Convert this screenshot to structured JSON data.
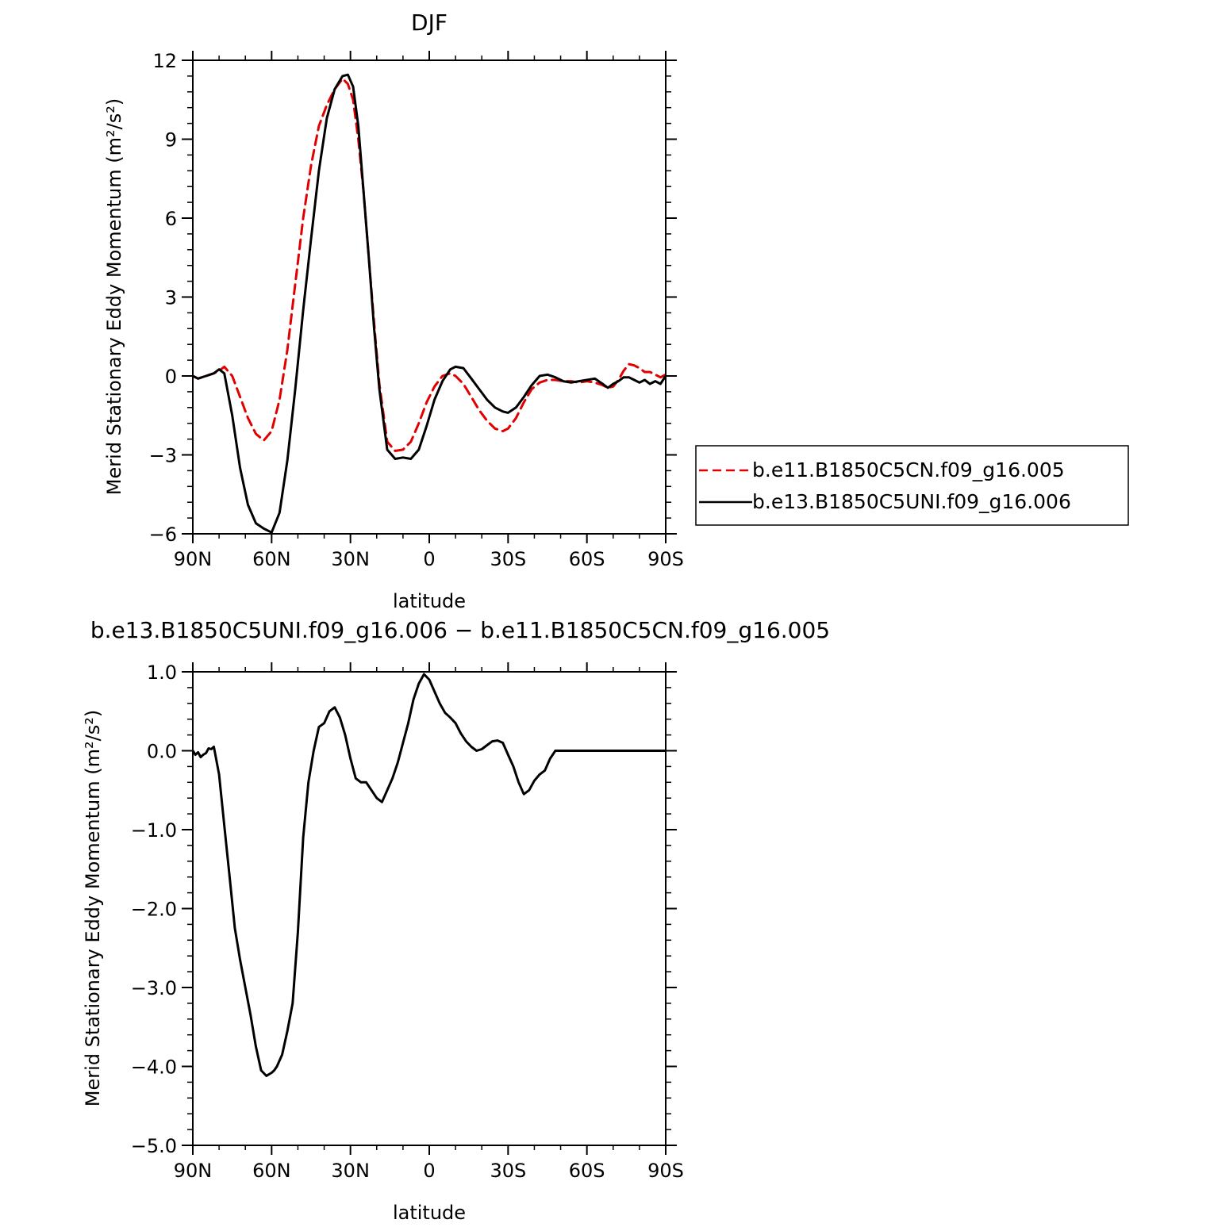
{
  "chart_data": [
    {
      "type": "line",
      "title": "DJF",
      "xlabel": "latitude",
      "ylabel": "Merid Stationary Eddy Momentum (m²/s²)",
      "xlim": [
        90,
        -90
      ],
      "ylim": [
        -6,
        12
      ],
      "xticks": [
        90,
        60,
        30,
        0,
        -30,
        -60,
        -90
      ],
      "xtick_labels": [
        "90N",
        "60N",
        "30N",
        "0",
        "30S",
        "60S",
        "90S"
      ],
      "yticks": [
        -6,
        -3,
        0,
        3,
        6,
        9,
        12
      ],
      "ytick_labels": [
        "−6",
        "−3",
        "0",
        "3",
        "6",
        "9",
        "12"
      ],
      "legend_position": "right",
      "series": [
        {
          "name": "b.e11.B1850C5CN.f09_g16.005",
          "color": "#e00000",
          "style": "dashed",
          "x": [
            90,
            88,
            85,
            82,
            80,
            78,
            75,
            72,
            69,
            66,
            63,
            60,
            57,
            54,
            51,
            48,
            45,
            42,
            39,
            36,
            33,
            31,
            29,
            27,
            25,
            23,
            21,
            19,
            16,
            13,
            10,
            7,
            4,
            1,
            -2,
            -5,
            -8,
            -10,
            -13,
            -16,
            -19,
            -22,
            -25,
            -28,
            -30,
            -33,
            -36,
            -39,
            -42,
            -45,
            -48,
            -51,
            -54,
            -57,
            -60,
            -63,
            -66,
            -68,
            -70,
            -72,
            -74,
            -76,
            -78,
            -80,
            -82,
            -84,
            -86,
            -88,
            -90
          ],
          "y": [
            0.0,
            -0.1,
            0.0,
            0.1,
            0.2,
            0.35,
            0.0,
            -0.8,
            -1.6,
            -2.2,
            -2.45,
            -2.1,
            -0.9,
            1.0,
            3.5,
            6.0,
            8.0,
            9.5,
            10.3,
            10.9,
            11.3,
            11.1,
            10.5,
            9.0,
            7.0,
            4.5,
            2.0,
            -0.3,
            -2.5,
            -2.85,
            -2.8,
            -2.5,
            -1.8,
            -1.0,
            -0.4,
            0.0,
            0.1,
            0.0,
            -0.3,
            -0.8,
            -1.3,
            -1.7,
            -2.0,
            -2.1,
            -2.0,
            -1.6,
            -1.0,
            -0.5,
            -0.25,
            -0.15,
            -0.15,
            -0.2,
            -0.2,
            -0.25,
            -0.2,
            -0.25,
            -0.35,
            -0.45,
            -0.4,
            -0.15,
            0.2,
            0.45,
            0.4,
            0.3,
            0.15,
            0.15,
            0.05,
            -0.05,
            0.05
          ]
        },
        {
          "name": "b.e13.B1850C5UNI.f09_g16.006",
          "color": "#000000",
          "style": "solid",
          "x": [
            90,
            88,
            85,
            82,
            80,
            78,
            75,
            72,
            69,
            66,
            63,
            60,
            57,
            54,
            51,
            48,
            45,
            42,
            39,
            36,
            33,
            31,
            29,
            27,
            25,
            23,
            21,
            19,
            16,
            13,
            10,
            7,
            4,
            1,
            -2,
            -5,
            -8,
            -10,
            -13,
            -16,
            -19,
            -22,
            -25,
            -28,
            -30,
            -33,
            -36,
            -39,
            -42,
            -45,
            -48,
            -51,
            -54,
            -57,
            -60,
            -63,
            -66,
            -68,
            -70,
            -72,
            -74,
            -76,
            -78,
            -80,
            -82,
            -84,
            -86,
            -88,
            -90
          ],
          "y": [
            0.0,
            -0.1,
            0.0,
            0.1,
            0.25,
            0.1,
            -1.5,
            -3.5,
            -4.9,
            -5.6,
            -5.8,
            -5.95,
            -5.2,
            -3.2,
            -0.5,
            2.5,
            5.2,
            7.8,
            9.8,
            10.9,
            11.4,
            11.45,
            11.0,
            9.5,
            7.0,
            4.5,
            1.8,
            -0.5,
            -2.8,
            -3.15,
            -3.1,
            -3.15,
            -2.8,
            -1.9,
            -0.9,
            -0.2,
            0.25,
            0.35,
            0.3,
            -0.1,
            -0.5,
            -0.9,
            -1.2,
            -1.35,
            -1.4,
            -1.2,
            -0.8,
            -0.35,
            0.0,
            0.05,
            -0.05,
            -0.2,
            -0.25,
            -0.2,
            -0.15,
            -0.1,
            -0.3,
            -0.45,
            -0.3,
            -0.2,
            -0.05,
            -0.05,
            -0.15,
            -0.25,
            -0.15,
            -0.3,
            -0.2,
            -0.3,
            0.0
          ]
        }
      ]
    },
    {
      "type": "line",
      "title": "b.e13.B1850C5UNI.f09_g16.006 − b.e11.B1850C5CN.f09_g16.005",
      "xlabel": "latitude",
      "ylabel": "Merid Stationary Eddy Momentum (m²/s²)",
      "xlim": [
        90,
        -90
      ],
      "ylim": [
        -5,
        1
      ],
      "xticks": [
        90,
        60,
        30,
        0,
        -30,
        -60,
        -90
      ],
      "xtick_labels": [
        "90N",
        "60N",
        "30N",
        "0",
        "30S",
        "60S",
        "90S"
      ],
      "yticks": [
        -5,
        -4,
        -3,
        -2,
        -1,
        0,
        1
      ],
      "ytick_labels": [
        "−5.0",
        "−4.0",
        "−3.0",
        "−2.0",
        "−1.0",
        "0.0",
        "1.0"
      ],
      "series": [
        {
          "color": "#000000",
          "style": "solid",
          "x": [
            90,
            89,
            88,
            87,
            86,
            85,
            84,
            83,
            82,
            80,
            78,
            76,
            74,
            72,
            70,
            68,
            66,
            64,
            62,
            60,
            59,
            58,
            56,
            54,
            52,
            50,
            48,
            46,
            44,
            42,
            40,
            38,
            36,
            34,
            32,
            30,
            28,
            26,
            24,
            22,
            20,
            18,
            16,
            14,
            12,
            10,
            8,
            6,
            4,
            2,
            0,
            -2,
            -4,
            -6,
            -8,
            -10,
            -12,
            -14,
            -16,
            -18,
            -20,
            -22,
            -24,
            -26,
            -28,
            -30,
            -32,
            -34,
            -36,
            -38,
            -40,
            -42,
            -44,
            -46,
            -48,
            -50,
            -52,
            -54,
            -56,
            -58,
            -60,
            -62,
            -64,
            -66,
            -68,
            -70,
            -72,
            -74,
            -76,
            -78,
            -80,
            -82,
            -84,
            -86,
            -88,
            -90
          ],
          "y": [
            0.0,
            -0.05,
            -0.02,
            -0.08,
            -0.05,
            -0.03,
            0.03,
            0.02,
            0.05,
            -0.3,
            -0.95,
            -1.6,
            -2.25,
            -2.65,
            -3.0,
            -3.35,
            -3.75,
            -4.05,
            -4.12,
            -4.08,
            -4.05,
            -4.0,
            -3.85,
            -3.55,
            -3.2,
            -2.3,
            -1.1,
            -0.4,
            0.0,
            0.3,
            0.35,
            0.5,
            0.55,
            0.42,
            0.2,
            -0.1,
            -0.35,
            -0.4,
            -0.4,
            -0.5,
            -0.6,
            -0.65,
            -0.5,
            -0.35,
            -0.15,
            0.1,
            0.35,
            0.65,
            0.85,
            0.97,
            0.9,
            0.75,
            0.6,
            0.48,
            0.42,
            0.35,
            0.22,
            0.12,
            0.05,
            0.0,
            0.02,
            0.07,
            0.12,
            0.13,
            0.1,
            -0.05,
            -0.2,
            -0.4,
            -0.55,
            -0.5,
            -0.38,
            -0.3,
            -0.25,
            -0.1,
            0.0,
            0.0,
            0.0,
            0.0,
            0.0,
            0.0,
            0.0,
            0.0,
            0.0,
            0.0,
            0.0,
            0.0,
            0.0,
            0.0,
            0.0,
            0.0,
            0.0,
            0.0,
            0.0,
            0.0,
            0.0,
            0.0
          ]
        }
      ]
    }
  ]
}
